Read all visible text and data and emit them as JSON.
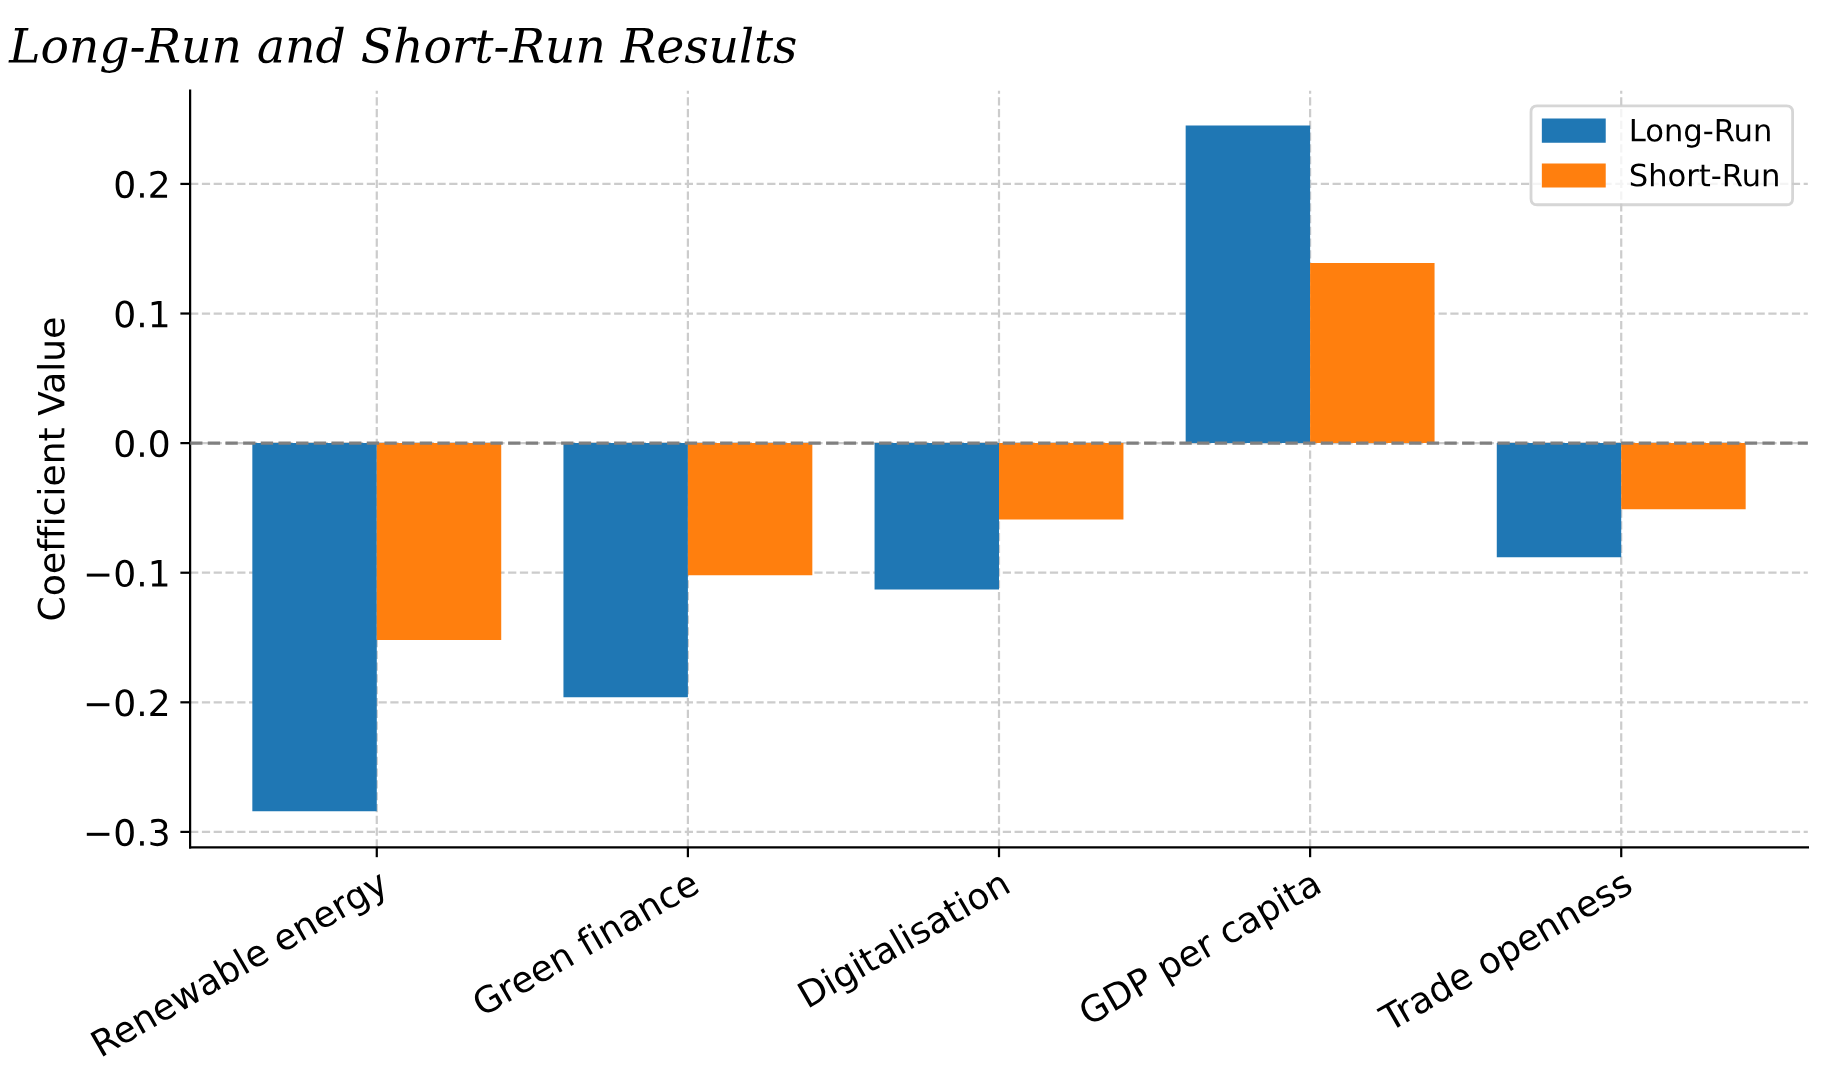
{
  "chart_data": {
    "type": "bar",
    "title": "Long-Run and Short-Run Results",
    "ylabel": "Coefficient Value",
    "categories": [
      "Renewable energy",
      "Green finance",
      "Digitalisation",
      "GDP per capita",
      "Trade openness"
    ],
    "series": [
      {
        "name": "Long-Run",
        "color": "#1f77b4",
        "values": [
          -0.284,
          -0.196,
          -0.113,
          0.245,
          -0.088
        ]
      },
      {
        "name": "Short-Run",
        "color": "#ff7f0e",
        "values": [
          -0.152,
          -0.102,
          -0.059,
          0.139,
          -0.051
        ]
      }
    ],
    "ylim": [
      -0.312,
      0.272
    ],
    "yticks": [
      {
        "value": -0.3,
        "label": "−0.3"
      },
      {
        "value": -0.2,
        "label": "−0.2"
      },
      {
        "value": -0.1,
        "label": "−0.1"
      },
      {
        "value": 0,
        "label": "0.0"
      },
      0.1,
      0.2
    ],
    "ref_lines": [
      {
        "axis": "y",
        "value": 0,
        "color": "#808080",
        "line_style": "dashed"
      }
    ],
    "grid": true,
    "legend": "top right"
  }
}
